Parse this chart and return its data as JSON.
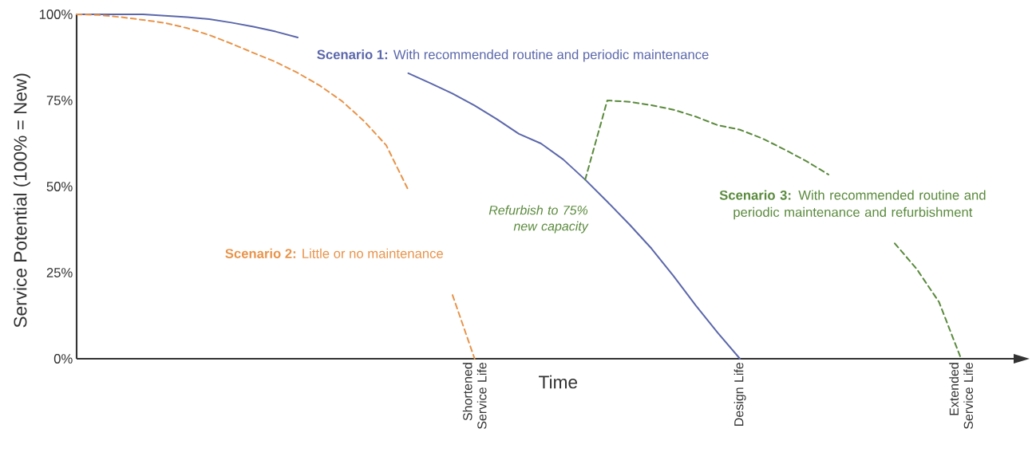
{
  "chart_data": {
    "type": "line",
    "ylabel": "Service Potential (100% = New)",
    "xlabel": "Time",
    "categories": [
      null,
      null,
      null,
      null,
      null,
      null,
      null,
      null,
      null,
      null,
      null,
      null,
      null,
      null,
      null,
      null,
      null,
      null,
      "Shortened Service Life",
      null,
      null,
      null,
      null,
      null,
      null,
      null,
      null,
      null,
      null,
      null,
      "Design Life",
      null,
      null,
      null,
      null,
      null,
      null,
      null,
      null,
      null,
      "Extended Service Life"
    ],
    "ylim": [
      0,
      100
    ],
    "yticks": [
      {
        "value": 0,
        "label": "0%"
      },
      {
        "value": 25,
        "label": "25%"
      },
      {
        "value": 50,
        "label": "50%"
      },
      {
        "value": 75,
        "label": "75%"
      },
      {
        "value": 100,
        "label": "100%"
      }
    ],
    "marker": "none",
    "series": [
      {
        "name": "**Scenario 1:** With recommended routine and periodic maintenance",
        "color": "#5b67ab",
        "line_style": "solid",
        "values": [
          100,
          100,
          100,
          100,
          99.6,
          99.2,
          98.6,
          97.6,
          96.4,
          95.0,
          93.3,
          null,
          null,
          null,
          null,
          82.9,
          80.0,
          77.0,
          73.5,
          69.6,
          65.3,
          62.5,
          57.9,
          52.0,
          45.6,
          39.0,
          32.0,
          24.0,
          15.5,
          7.5,
          0,
          null,
          null,
          null,
          null,
          null,
          null,
          null,
          null,
          null,
          null
        ]
      },
      {
        "name": "**Scenario 2:** Little or no maintenance",
        "color": "#e8944a",
        "line_style": "dashed",
        "values": [
          100,
          99.8,
          99.2,
          98.4,
          97.5,
          96.0,
          94.0,
          91.5,
          88.8,
          86.2,
          83.0,
          79.3,
          74.8,
          69.0,
          62.0,
          49.0,
          null,
          18.5,
          0,
          null,
          null,
          null,
          null,
          null,
          null,
          null,
          null,
          null,
          null,
          null,
          null,
          null,
          null,
          null,
          null,
          null,
          null,
          null,
          null,
          null,
          null
        ]
      },
      {
        "name": "**Scenario 3:** With recommended routine and periodic maintenance and refurbishment",
        "color": "#5a8a3c",
        "line_style": "dashed",
        "values": [
          null,
          null,
          null,
          null,
          null,
          null,
          null,
          null,
          null,
          null,
          null,
          null,
          null,
          null,
          null,
          null,
          null,
          null,
          null,
          null,
          null,
          null,
          null,
          52.0,
          75,
          74.6,
          73.6,
          72.3,
          70.3,
          67.8,
          66.5,
          64.0,
          60.8,
          57.4,
          53.5,
          null,
          null,
          33.5,
          26.0,
          16.5,
          0
        ]
      }
    ],
    "annotations": [
      "Refurbish to 75% new capacity"
    ]
  }
}
